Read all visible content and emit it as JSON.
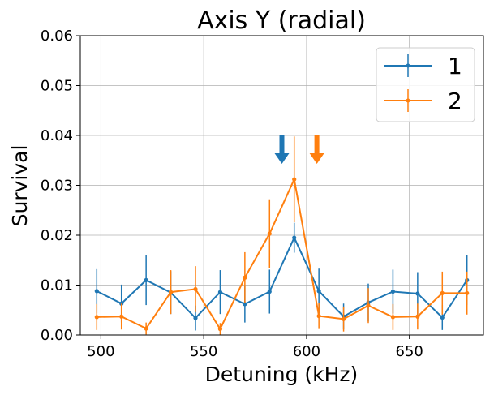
{
  "chart_data": {
    "type": "line",
    "title": "Axis Y (radial)",
    "xlabel": "Detuning (kHz)",
    "ylabel": "Survival",
    "xlim": [
      490,
      686
    ],
    "ylim": [
      0,
      0.06
    ],
    "x_ticks": [
      500,
      550,
      600,
      650
    ],
    "y_ticks": [
      0.0,
      0.01,
      0.02,
      0.03,
      0.04,
      0.05,
      0.06
    ],
    "x_tick_labels": [
      "500",
      "550",
      "600",
      "650"
    ],
    "y_tick_labels": [
      "0.00",
      "0.01",
      "0.02",
      "0.03",
      "0.04",
      "0.05",
      "0.06"
    ],
    "grid": true,
    "legend_position": "top-right",
    "series": [
      {
        "name": "1",
        "color": "#1f77b4",
        "x": [
          498,
          510,
          522,
          534,
          546,
          558,
          570,
          582,
          594,
          606,
          618,
          630,
          642,
          654,
          666,
          678
        ],
        "y": [
          0.0088,
          0.0063,
          0.011,
          0.0085,
          0.0034,
          0.0086,
          0.0062,
          0.0087,
          0.0195,
          0.0088,
          0.0037,
          0.0065,
          0.0087,
          0.0083,
          0.0035,
          0.011
        ],
        "err": [
          0.0044,
          0.0038,
          0.005,
          0.0043,
          0.0025,
          0.0044,
          0.0037,
          0.0044,
          0.003,
          0.0045,
          0.0026,
          0.0038,
          0.0044,
          0.0043,
          0.0025,
          0.005
        ]
      },
      {
        "name": "2",
        "color": "#ff7f0e",
        "x": [
          498,
          510,
          522,
          534,
          546,
          558,
          570,
          582,
          594,
          606,
          618,
          630,
          642,
          654,
          666,
          678
        ],
        "y": [
          0.0036,
          0.0037,
          0.0013,
          0.0086,
          0.0092,
          0.0012,
          0.0115,
          0.0203,
          0.0312,
          0.0038,
          0.0032,
          0.0059,
          0.0036,
          0.0037,
          0.0084,
          0.0084
        ],
        "err": [
          0.0026,
          0.0026,
          0.0012,
          0.0044,
          0.0046,
          0.0012,
          0.0051,
          0.0069,
          0.0086,
          0.0026,
          0.0025,
          0.0035,
          0.0026,
          0.0026,
          0.0043,
          0.0043
        ]
      }
    ],
    "annotations": [
      {
        "type": "arrow",
        "x": 588,
        "y_top": 0.04,
        "y_bottom": 0.0343,
        "color": "#1f77b4"
      },
      {
        "type": "arrow",
        "x": 605,
        "y_top": 0.04,
        "y_bottom": 0.0343,
        "color": "#ff7f0e"
      }
    ]
  }
}
